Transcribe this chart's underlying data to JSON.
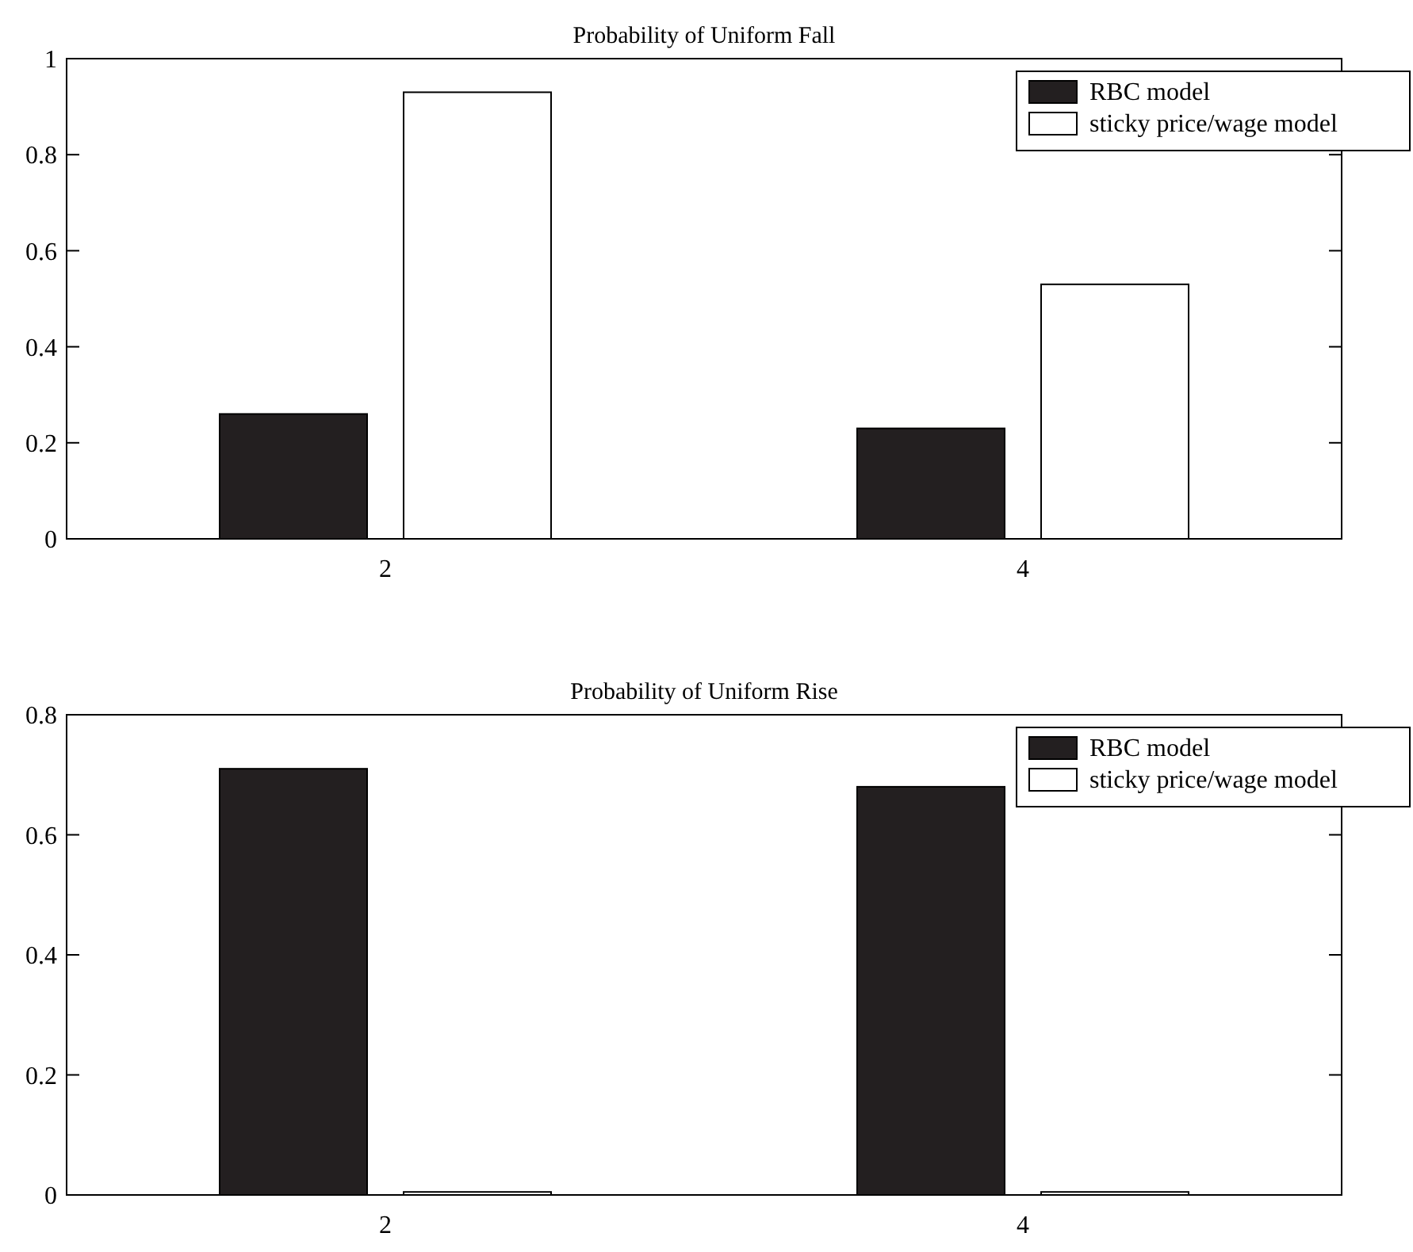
{
  "chart_data": [
    {
      "type": "bar",
      "title": "Probability of  Uniform Fall",
      "categories": [
        "2",
        "4"
      ],
      "series": [
        {
          "name": "RBC model",
          "color": "#231f20",
          "values": [
            0.26,
            0.23
          ]
        },
        {
          "name": "sticky price/wage model",
          "color": "#ffffff",
          "values": [
            0.93,
            0.53
          ]
        }
      ],
      "ylim": [
        0,
        1
      ],
      "yticks": [
        0,
        0.2,
        0.4,
        0.6,
        0.8,
        1
      ],
      "legend": "top right"
    },
    {
      "type": "bar",
      "title": "Probability of Uniform Rise",
      "categories": [
        "2",
        "4"
      ],
      "series": [
        {
          "name": "RBC model",
          "color": "#231f20",
          "values": [
            0.71,
            0.68
          ]
        },
        {
          "name": "sticky price/wage model",
          "color": "#ffffff",
          "values": [
            0.005,
            0.005
          ]
        }
      ],
      "ylim": [
        0,
        0.8
      ],
      "yticks": [
        0,
        0.2,
        0.4,
        0.6,
        0.8
      ],
      "legend": "top right"
    }
  ]
}
